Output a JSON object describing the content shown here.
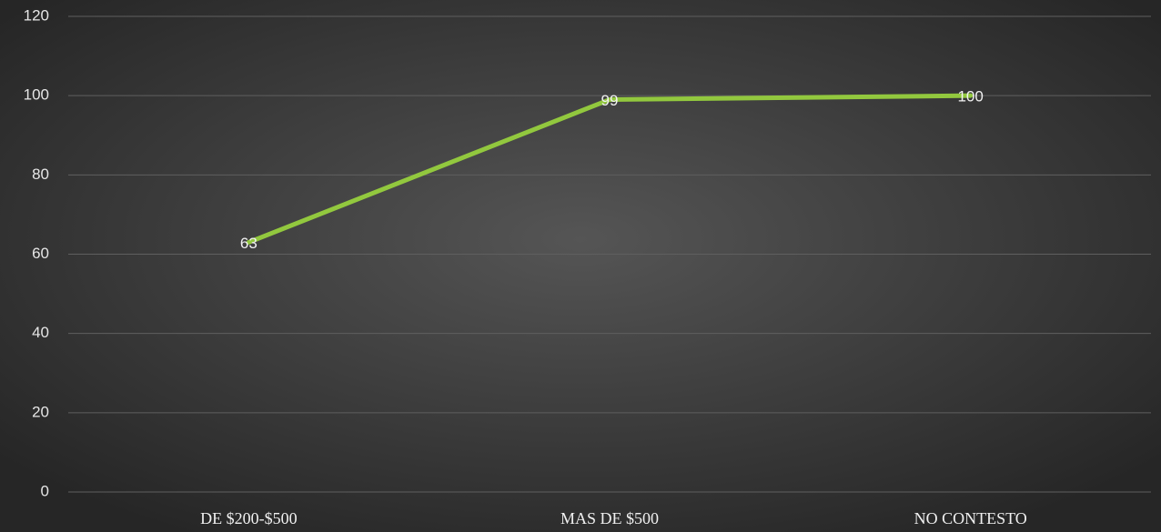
{
  "chart_data": {
    "type": "line",
    "categories": [
      "DE $200-$500",
      "MAS DE $500",
      "NO CONTESTO"
    ],
    "values": [
      63,
      99,
      100
    ],
    "color": "#92c83e",
    "ylim": [
      0,
      120
    ],
    "yticks": [
      0,
      20,
      40,
      60,
      80,
      100,
      120
    ],
    "grid": true
  }
}
